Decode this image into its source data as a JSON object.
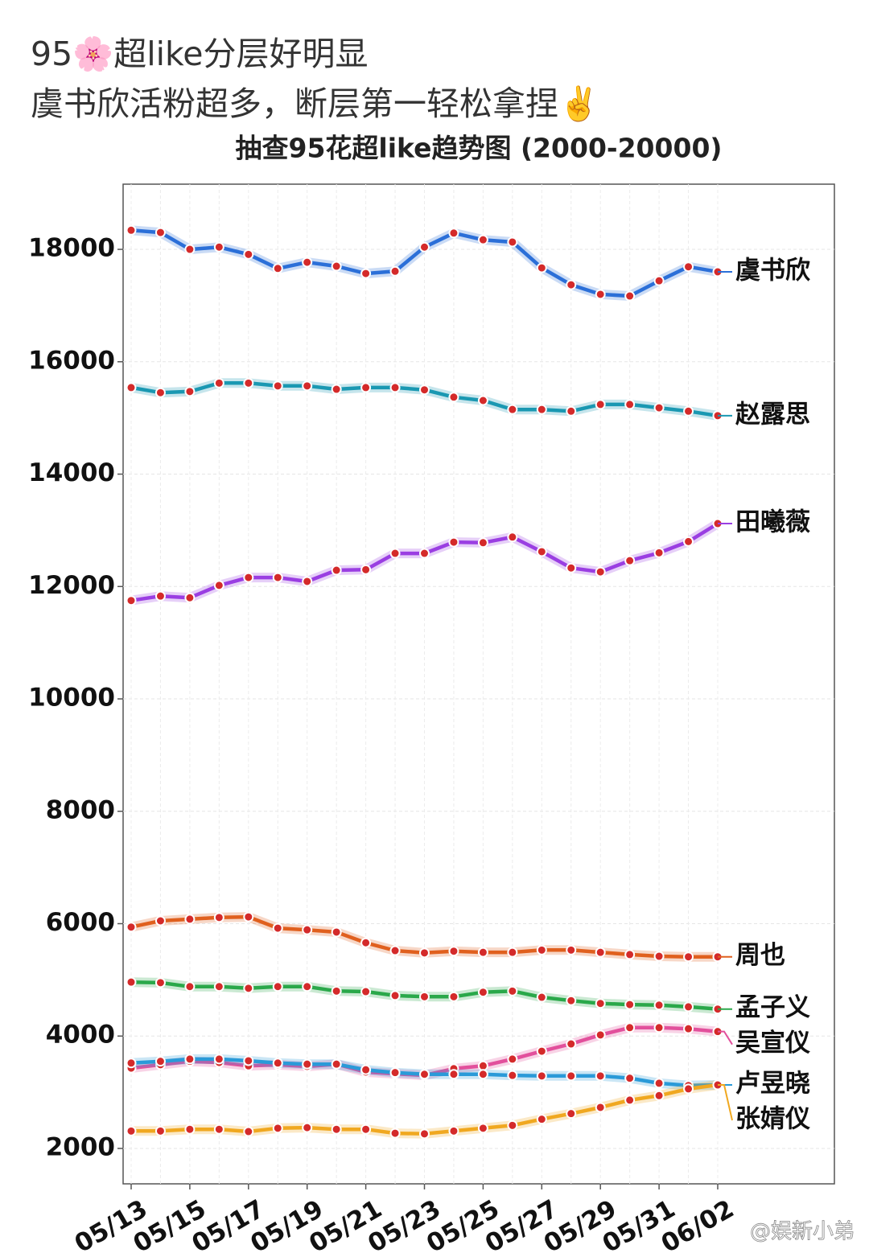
{
  "post": {
    "lines": [
      "95🌸超like分层好明显",
      "虞书欣活粉超多，断层第一轻松拿捏✌️"
    ]
  },
  "chart_data": {
    "type": "line",
    "title": "抽查95花超like趋势图 (2000-20000)",
    "categories": [
      "05/13",
      null,
      "05/15",
      null,
      "05/17",
      null,
      "05/19",
      null,
      "05/21",
      null,
      "05/23",
      null,
      "05/25",
      null,
      "05/27",
      null,
      "05/29",
      null,
      "05/31",
      null,
      "06/02"
    ],
    "ylim": [
      1370,
      19160
    ],
    "yticks": [
      2000,
      4000,
      6000,
      8000,
      10000,
      12000,
      14000,
      16000,
      18000
    ],
    "grid": true,
    "marker_color": "#d42a2a",
    "series": [
      {
        "name": "虞书欣",
        "color": "#2b6fd8",
        "values": [
          18340,
          18300,
          18000,
          18040,
          17910,
          17660,
          17770,
          17700,
          17570,
          17610,
          18040,
          18290,
          18170,
          18130,
          17670,
          17370,
          17200,
          17170,
          17440,
          17690,
          17600
        ]
      },
      {
        "name": "赵露思",
        "color": "#1a98b2",
        "values": [
          15540,
          15450,
          15470,
          15620,
          15620,
          15570,
          15570,
          15510,
          15540,
          15540,
          15500,
          15370,
          15310,
          15150,
          15150,
          15120,
          15240,
          15240,
          15180,
          15120,
          15040
        ]
      },
      {
        "name": "田曦薇",
        "color": "#9a3ee2",
        "values": [
          11750,
          11830,
          11800,
          12020,
          12160,
          12160,
          12090,
          12290,
          12300,
          12590,
          12590,
          12790,
          12780,
          12880,
          12620,
          12330,
          12260,
          12460,
          12600,
          12800,
          13120
        ]
      },
      {
        "name": "周也",
        "color": "#e0601e",
        "values": [
          5940,
          6050,
          6080,
          6110,
          6120,
          5920,
          5890,
          5850,
          5660,
          5520,
          5480,
          5510,
          5490,
          5490,
          5530,
          5530,
          5490,
          5450,
          5420,
          5410,
          5410
        ]
      },
      {
        "name": "孟子义",
        "color": "#2aa84a",
        "values": [
          4960,
          4950,
          4880,
          4880,
          4850,
          4880,
          4880,
          4800,
          4790,
          4720,
          4700,
          4700,
          4780,
          4800,
          4690,
          4630,
          4580,
          4560,
          4550,
          4520,
          4480
        ]
      },
      {
        "name": "吴宣仪",
        "color": "#e2509c",
        "values": [
          3430,
          3490,
          3550,
          3530,
          3470,
          3490,
          3460,
          3500,
          3360,
          3330,
          3300,
          3420,
          3470,
          3590,
          3730,
          3860,
          4020,
          4150,
          4150,
          4130,
          4080
        ]
      },
      {
        "name": "卢昱晓",
        "color": "#2a9ad8",
        "values": [
          3520,
          3550,
          3590,
          3590,
          3560,
          3520,
          3500,
          3500,
          3400,
          3350,
          3320,
          3320,
          3320,
          3300,
          3290,
          3290,
          3290,
          3250,
          3160,
          3120,
          3130
        ]
      },
      {
        "name": "张婧仪",
        "color": "#f0a820",
        "values": [
          2310,
          2310,
          2340,
          2340,
          2300,
          2360,
          2370,
          2340,
          2340,
          2270,
          2260,
          2310,
          2360,
          2410,
          2520,
          2620,
          2730,
          2860,
          2940,
          3060,
          3130
        ]
      }
    ]
  },
  "watermark": "@娱新小弟"
}
